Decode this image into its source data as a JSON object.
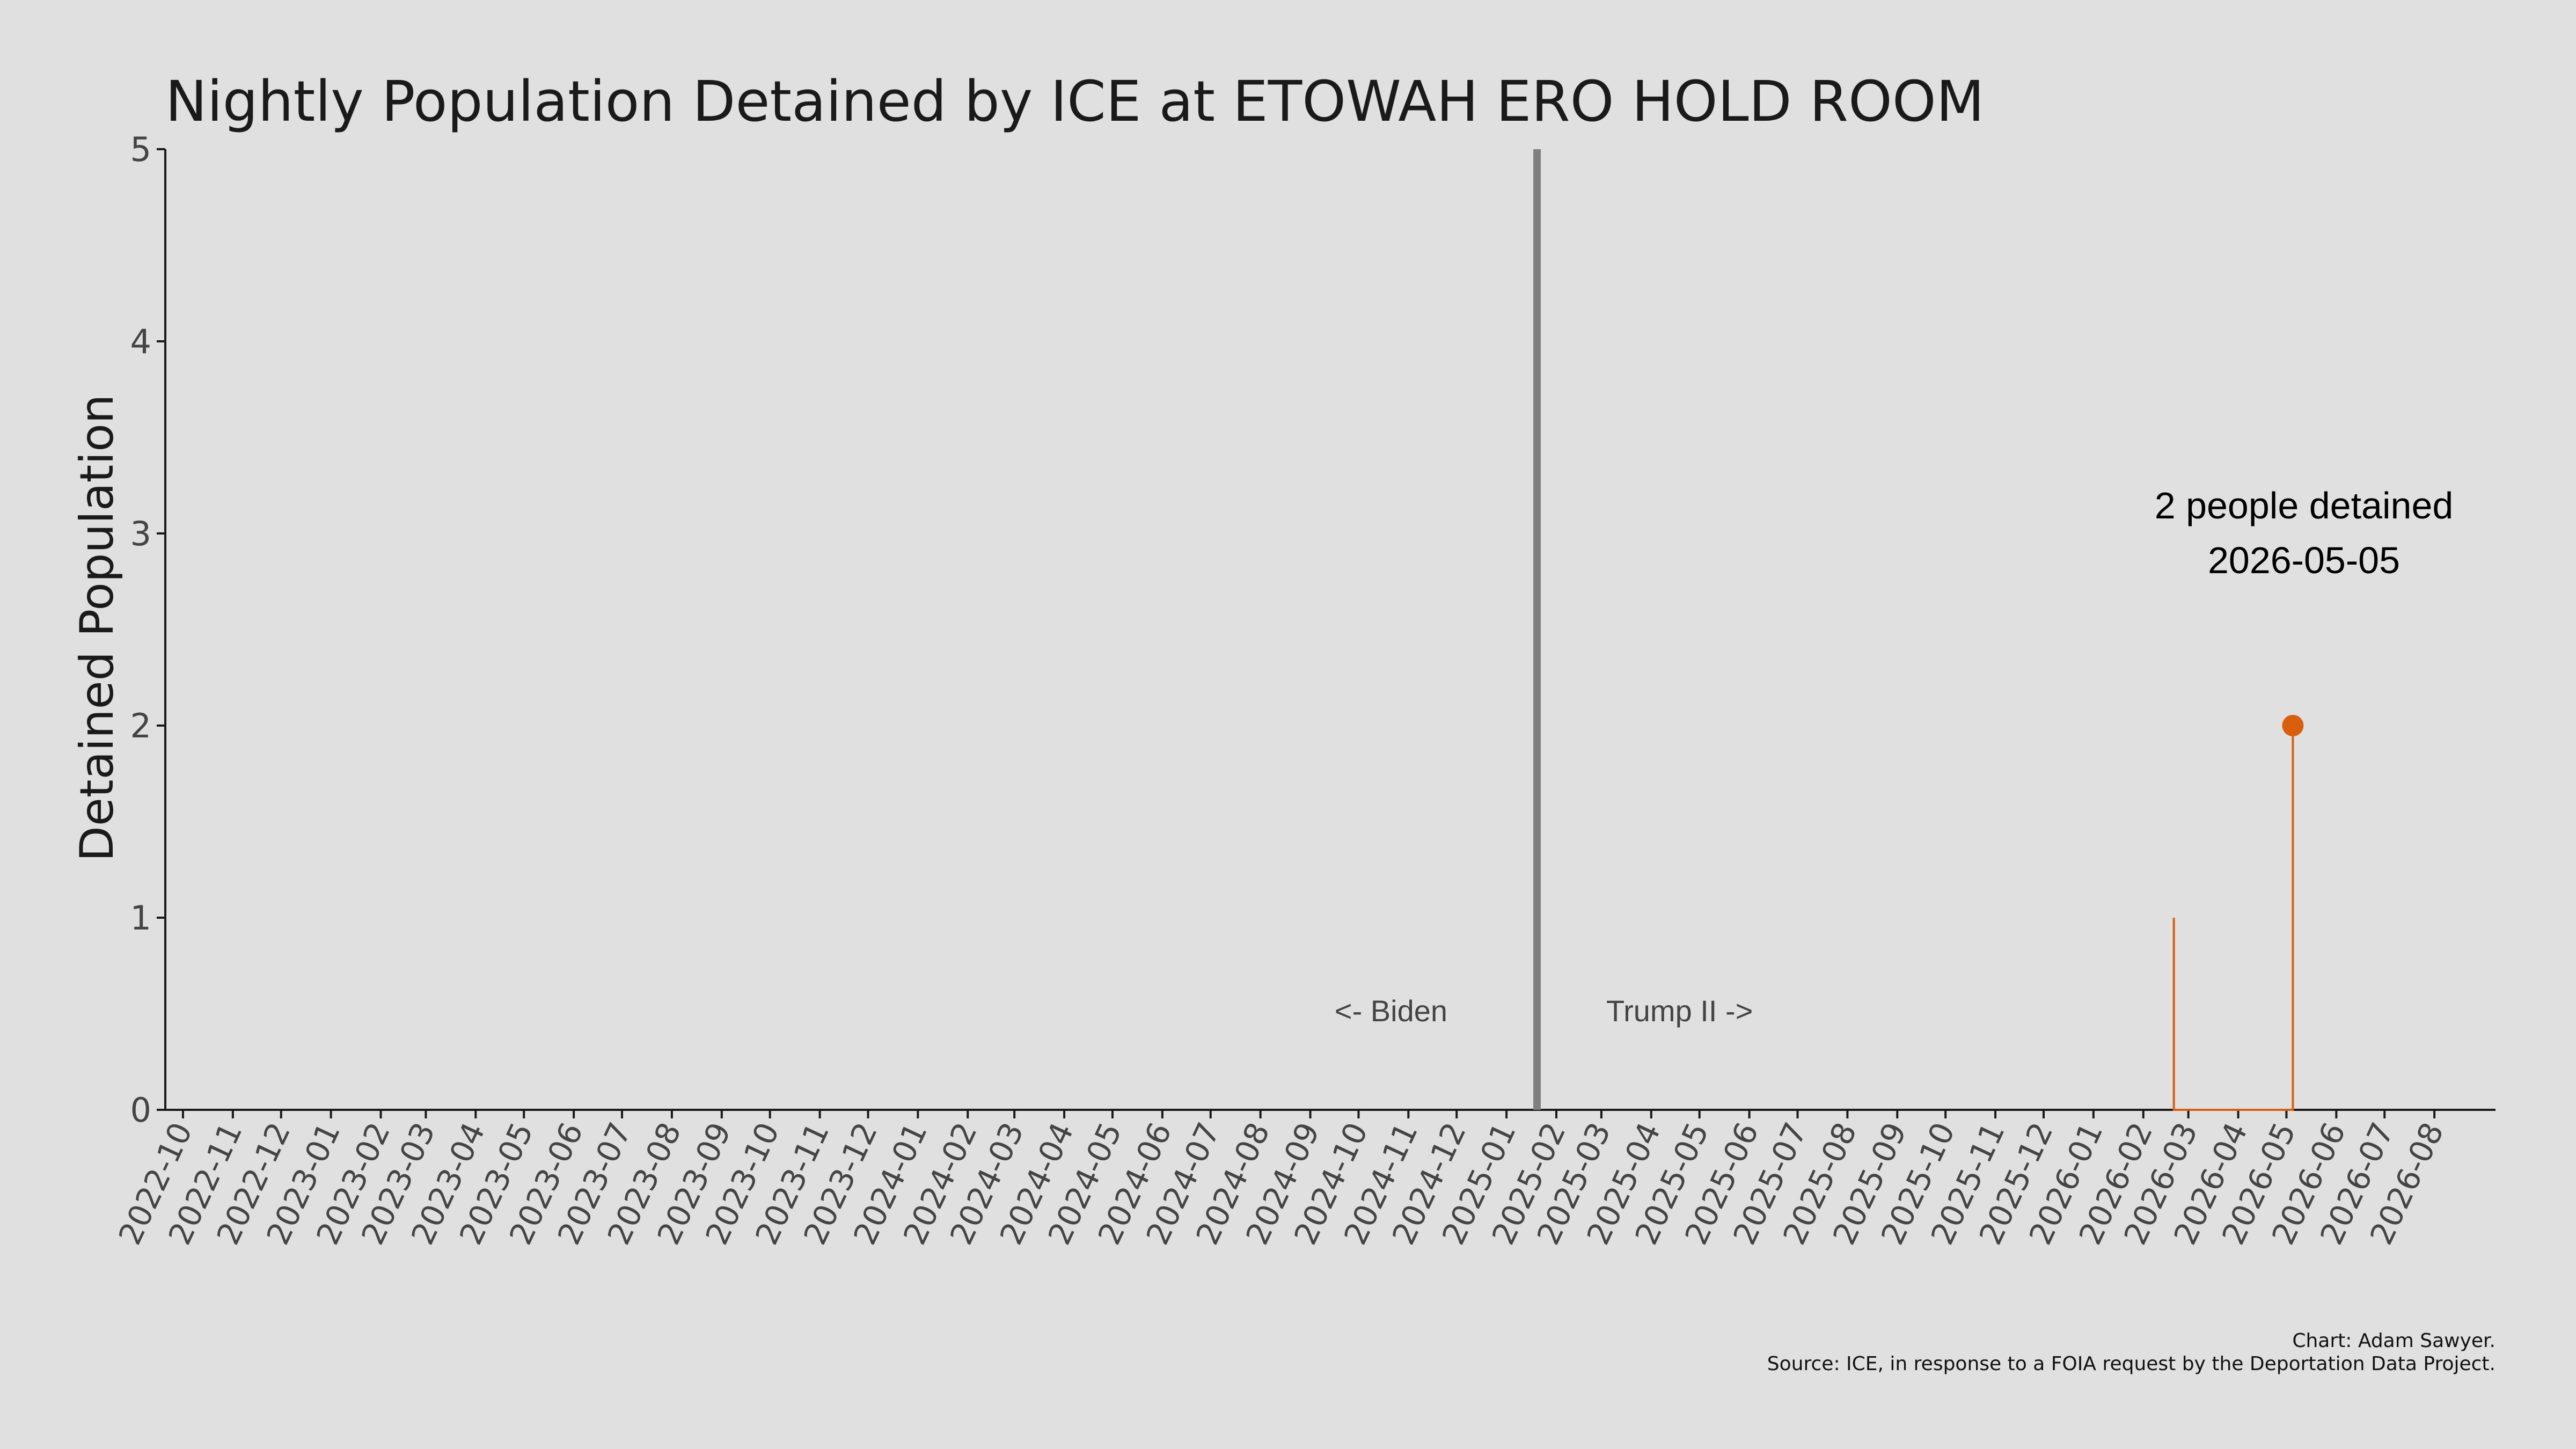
{
  "chart_data": {
    "type": "line",
    "title": "Nightly Population Detained by ICE at ETOWAH ERO HOLD ROOM",
    "ylabel": "Detained Population",
    "xlabel": "",
    "ylim": [
      0,
      5
    ],
    "y_ticks": [
      "0",
      "1",
      "2",
      "3",
      "4",
      "5"
    ],
    "x_range": [
      "2022-09-20",
      "2026-09-08"
    ],
    "x_ticks": [
      "2022-10",
      "2022-11",
      "2022-12",
      "2023-01",
      "2023-02",
      "2023-03",
      "2023-04",
      "2023-05",
      "2023-06",
      "2023-07",
      "2023-08",
      "2023-09",
      "2023-10",
      "2023-11",
      "2023-12",
      "2024-01",
      "2024-02",
      "2024-03",
      "2024-04",
      "2024-05",
      "2024-06",
      "2024-07",
      "2024-08",
      "2024-09",
      "2024-10",
      "2024-11",
      "2024-12",
      "2025-01",
      "2025-02",
      "2025-03",
      "2025-04",
      "2025-05",
      "2025-06",
      "2025-07",
      "2025-08",
      "2025-09",
      "2025-10",
      "2025-11",
      "2025-12",
      "2026-01",
      "2026-02",
      "2026-03",
      "2026-04",
      "2026-05",
      "2026-06",
      "2026-07",
      "2026-08"
    ],
    "grid": false,
    "series_color": "#d95f0e",
    "marker_color": "#d95f0e",
    "divider_color": "#808080",
    "series": [
      {
        "points": [
          {
            "x": "2026-02-20",
            "y": 0
          },
          {
            "x": "2026-02-20",
            "y": 1
          },
          {
            "x": "2026-02-20",
            "y": 0
          },
          {
            "x": "2026-05-05",
            "y": 0
          },
          {
            "x": "2026-05-05",
            "y": 2
          },
          {
            "x": "2026-05-05",
            "y": 0
          }
        ]
      }
    ],
    "highlight": {
      "x": "2026-05-05",
      "y": 2
    },
    "divider": {
      "x": "2025-01-20"
    },
    "annotations": {
      "left_era": "<- Biden",
      "right_era": "Trump II ->",
      "peak_line1": "2 people detained",
      "peak_line2": "2026-05-05"
    },
    "credits": {
      "line1": "Chart: Adam Sawyer.",
      "line2": "Source: ICE, in response to a FOIA request by the Deportation Data Project."
    }
  }
}
